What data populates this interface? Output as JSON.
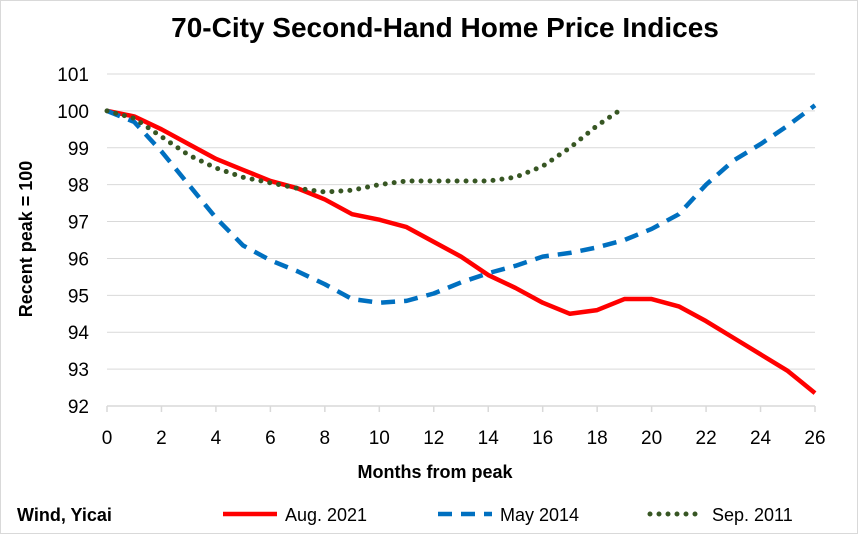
{
  "source_note": "Wind, Yicai",
  "chart_data": {
    "type": "line",
    "title": "70-City Second-Hand Home Price Indices",
    "xlabel": "Months from peak",
    "ylabel": "Recent peak = 100",
    "xlim": [
      0,
      26
    ],
    "ylim": [
      92,
      101
    ],
    "x_ticks": [
      0,
      2,
      4,
      6,
      8,
      10,
      12,
      14,
      16,
      18,
      20,
      22,
      24,
      26
    ],
    "y_ticks": [
      92,
      93,
      94,
      95,
      96,
      97,
      98,
      99,
      100,
      101
    ],
    "grid": "horizontal",
    "legend_position": "bottom",
    "series": [
      {
        "name": "Aug. 2021",
        "color": "#ff0000",
        "style": "solid",
        "x": [
          0,
          1,
          2,
          3,
          4,
          5,
          6,
          7,
          8,
          9,
          10,
          11,
          12,
          13,
          14,
          15,
          16,
          17,
          18,
          19,
          20,
          21,
          22,
          23,
          24,
          25,
          26
        ],
        "values": [
          100,
          99.85,
          99.5,
          99.1,
          98.7,
          98.4,
          98.1,
          97.9,
          97.6,
          97.2,
          97.05,
          96.85,
          96.45,
          96.05,
          95.55,
          95.2,
          94.8,
          94.5,
          94.6,
          94.9,
          94.9,
          94.7,
          94.3,
          93.85,
          93.4,
          92.95,
          92.35
        ]
      },
      {
        "name": "May 2014",
        "color": "#0070c0",
        "style": "dashed",
        "x": [
          0,
          1,
          2,
          3,
          4,
          5,
          6,
          7,
          8,
          9,
          10,
          11,
          12,
          13,
          14,
          15,
          16,
          17,
          18,
          19,
          20,
          21,
          22,
          23,
          24,
          25,
          26
        ],
        "values": [
          100,
          99.7,
          98.9,
          98,
          97.1,
          96.35,
          95.95,
          95.65,
          95.3,
          94.9,
          94.8,
          94.85,
          95.05,
          95.35,
          95.6,
          95.8,
          96.05,
          96.15,
          96.3,
          96.5,
          96.8,
          97.2,
          98,
          98.65,
          99.1,
          99.6,
          100.15
        ]
      },
      {
        "name": "Sep. 2011",
        "color": "#375623",
        "style": "dotted",
        "x": [
          0,
          1,
          2,
          3,
          4,
          5,
          6,
          7,
          8,
          9,
          10,
          11,
          12,
          13,
          14,
          15,
          16,
          17,
          18,
          19
        ],
        "values": [
          100,
          99.8,
          99.3,
          98.8,
          98.45,
          98.2,
          98.05,
          97.9,
          97.8,
          97.85,
          98.0,
          98.1,
          98.1,
          98.1,
          98.1,
          98.2,
          98.5,
          99.0,
          99.6,
          100.1
        ]
      }
    ]
  }
}
